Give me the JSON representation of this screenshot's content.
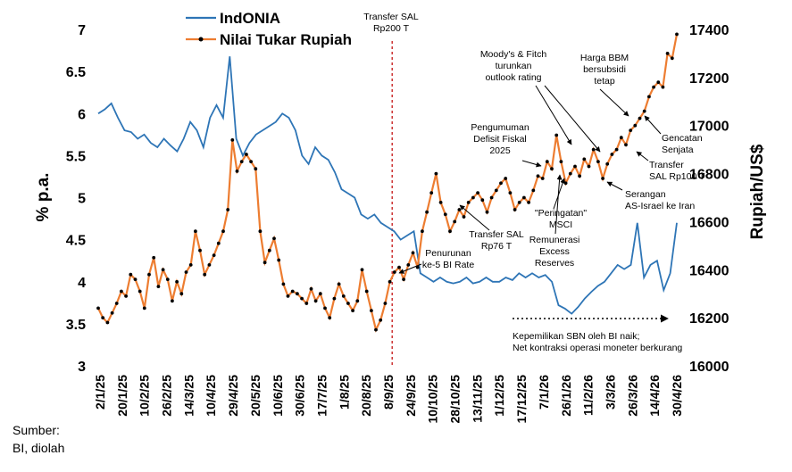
{
  "chart_data": {
    "type": "line",
    "legend": {
      "position": "top-left",
      "entries": [
        "IndONIA",
        "Nilai Tukar Rupiah"
      ]
    },
    "y_left": {
      "label": "% p.a.",
      "ticks": [
        "3",
        "3.5",
        "4",
        "4.5",
        "5",
        "5.5",
        "6",
        "6.5",
        "7"
      ],
      "range": [
        3,
        7
      ]
    },
    "y_right": {
      "label": "Rupiah/US$",
      "ticks": [
        "16000",
        "16200",
        "16400",
        "16600",
        "16800",
        "17000",
        "17200",
        "17400"
      ],
      "range": [
        16000,
        17400
      ]
    },
    "x_ticks": [
      "2/1/25",
      "20/1/25",
      "10/2/25",
      "26/2/25",
      "14/3/25",
      "10/4/25",
      "29/4/25",
      "20/5/25",
      "10/6/25",
      "30/6/25",
      "17/7/25",
      "1/8/25",
      "20/8/25",
      "8/9/25",
      "24/9/25",
      "10/10/25",
      "28/10/25",
      "13/11/25",
      "1/12/25",
      "17/12/25",
      "7/1/26",
      "26/1/26",
      "11/2/26",
      "3/3/26",
      "26/3/26",
      "14/4/26",
      "30/4/26"
    ],
    "series": [
      {
        "name": "IndONIA",
        "color": "#2E75B6",
        "axis": "left",
        "values": [
          6.0,
          6.05,
          6.12,
          5.95,
          5.8,
          5.78,
          5.7,
          5.75,
          5.65,
          5.6,
          5.7,
          5.62,
          5.55,
          5.7,
          5.9,
          5.8,
          5.6,
          5.95,
          6.1,
          5.95,
          6.68,
          5.7,
          5.5,
          5.65,
          5.75,
          5.8,
          5.85,
          5.9,
          6.0,
          5.95,
          5.8,
          5.5,
          5.4,
          5.6,
          5.5,
          5.45,
          5.3,
          5.1,
          5.05,
          5.0,
          4.8,
          4.75,
          4.8,
          4.7,
          4.65,
          4.6,
          4.5,
          4.55,
          4.6,
          4.1,
          4.05,
          4.0,
          4.05,
          4.0,
          3.98,
          4.0,
          4.05,
          3.98,
          4.0,
          4.05,
          4.0,
          4.0,
          4.05,
          4.02,
          4.1,
          4.05,
          4.1,
          4.05,
          4.08,
          4.0,
          3.72,
          3.68,
          3.62,
          3.7,
          3.8,
          3.88,
          3.95,
          4.0,
          4.1,
          4.2,
          4.15,
          4.2,
          4.7,
          4.05,
          4.2,
          4.25,
          3.9,
          4.1,
          4.7
        ]
      },
      {
        "name": "Nilai Tukar Rupiah",
        "color": "#ED7D31",
        "marker_color": "#000000",
        "axis": "right",
        "values": [
          16240,
          16200,
          16180,
          16220,
          16260,
          16310,
          16290,
          16380,
          16360,
          16310,
          16240,
          16380,
          16450,
          16330,
          16400,
          16360,
          16270,
          16350,
          16300,
          16390,
          16420,
          16560,
          16480,
          16380,
          16420,
          16460,
          16510,
          16560,
          16650,
          16940,
          16810,
          16850,
          16880,
          16850,
          16820,
          16560,
          16430,
          16480,
          16530,
          16440,
          16340,
          16290,
          16310,
          16300,
          16280,
          16260,
          16320,
          16270,
          16300,
          16240,
          16200,
          16280,
          16340,
          16290,
          16260,
          16230,
          16270,
          16400,
          16310,
          16230,
          16150,
          16190,
          16260,
          16350,
          16390,
          16410,
          16360,
          16420,
          16470,
          16410,
          16560,
          16640,
          16720,
          16800,
          16680,
          16630,
          16560,
          16600,
          16650,
          16620,
          16680,
          16700,
          16720,
          16690,
          16640,
          16700,
          16730,
          16760,
          16780,
          16720,
          16650,
          16680,
          16700,
          16680,
          16730,
          16790,
          16780,
          16850,
          16820,
          16960,
          16850,
          16760,
          16800,
          16830,
          16790,
          16860,
          16830,
          16900,
          16850,
          16780,
          16840,
          16880,
          16900,
          16950,
          16920,
          16980,
          17000,
          17030,
          17060,
          17120,
          17160,
          17180,
          17160,
          17300,
          17280,
          17380
        ]
      }
    ],
    "vertical_marker": {
      "label": "Transfer SAL Rp200 T",
      "position_index": 0.508,
      "color": "#C00000",
      "style": "dashed"
    },
    "annotations": [
      {
        "lines": [
          "Transfer SAL",
          "Rp200 T"
        ],
        "anchor": "top",
        "arrow": false
      },
      {
        "lines": [
          "Moody's & Fitch",
          "turunkan",
          "outlook rating"
        ],
        "arrow": true
      },
      {
        "lines": [
          "Harga BBM",
          "bersubsidi",
          "tetap"
        ],
        "arrow": true
      },
      {
        "lines": [
          "Pengumuman",
          "Defisit Fiskal",
          "2025"
        ],
        "arrow": true
      },
      {
        "lines": [
          "Gencatan",
          "Senjata"
        ],
        "arrow": true
      },
      {
        "lines": [
          "Transfer",
          "SAL Rp100 T"
        ],
        "arrow": true
      },
      {
        "lines": [
          "Serangan",
          "AS-Israel ke Iran"
        ],
        "arrow": true
      },
      {
        "lines": [
          "\"Peringatan\"",
          "MSCI"
        ],
        "arrow": true
      },
      {
        "lines": [
          "Transfer SAL",
          "Rp76  T"
        ],
        "arrow": true
      },
      {
        "lines": [
          "Remunerasi",
          "Excess",
          "Reserves"
        ],
        "arrow": true
      },
      {
        "lines": [
          "Penurunan",
          "ke-5 BI Rate"
        ],
        "arrow": true
      },
      {
        "lines": [
          "Kepemilikan SBN oleh BI naik;",
          "Net kontraksi operasi moneter berkurang"
        ],
        "arrow": true
      }
    ],
    "grid": false
  },
  "source": {
    "line1": "Sumber:",
    "line2": "BI, diolah"
  }
}
